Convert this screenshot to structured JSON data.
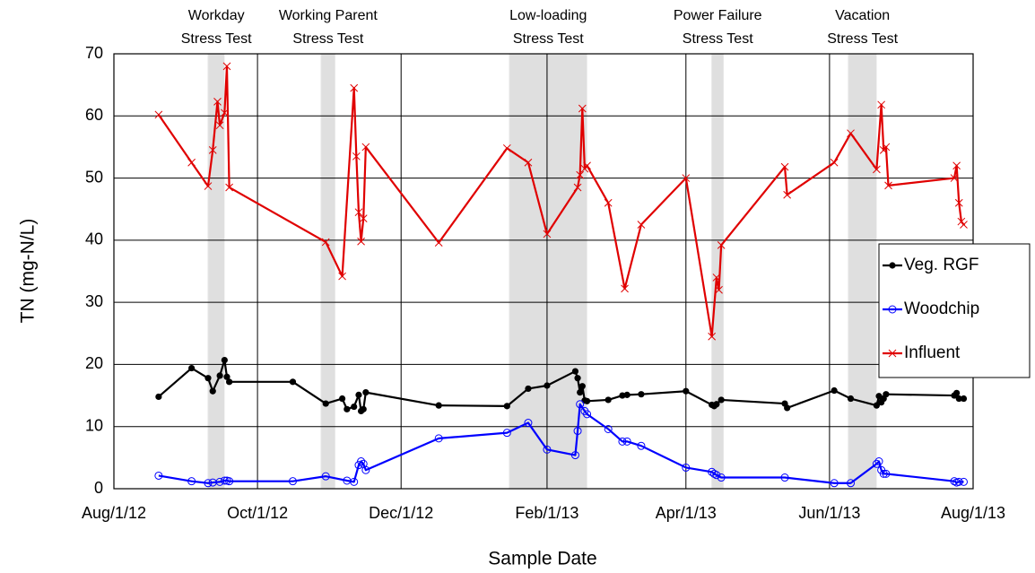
{
  "chart_data": {
    "type": "line",
    "xlabel": "Sample Date",
    "ylabel": "TN (mg-N/L)",
    "xlim": [
      "2012-08-01",
      "2013-08-01"
    ],
    "xticks": [
      {
        "value": "2012-08-01",
        "label": "Aug/1/12"
      },
      {
        "value": "2012-10-01",
        "label": "Oct/1/12"
      },
      {
        "value": "2012-12-01",
        "label": "Dec/1/12"
      },
      {
        "value": "2013-02-01",
        "label": "Feb/1/13"
      },
      {
        "value": "2013-04-01",
        "label": "Apr/1/13"
      },
      {
        "value": "2013-06-01",
        "label": "Jun/1/13"
      },
      {
        "value": "2013-08-01",
        "label": "Aug/1/13"
      }
    ],
    "ylim": [
      0,
      70
    ],
    "yticks": [
      0,
      10,
      20,
      30,
      40,
      50,
      60,
      70
    ],
    "grid": true,
    "legend": "right",
    "annotations": [
      {
        "label": [
          "Workday",
          "Stress Test"
        ],
        "start": "2012-09-10",
        "end": "2012-09-17"
      },
      {
        "label": [
          "Working Parent",
          "Stress Test"
        ],
        "start": "2012-10-28",
        "end": "2012-11-03"
      },
      {
        "label": [
          "Low-loading",
          "Stress Test"
        ],
        "start": "2013-01-16",
        "end": "2013-02-18"
      },
      {
        "label": [
          "Power Failure",
          "Stress Test"
        ],
        "start": "2013-04-12",
        "end": "2013-04-17"
      },
      {
        "label": [
          "Vacation",
          "Stress Test"
        ],
        "start": "2013-06-09",
        "end": "2013-06-21"
      }
    ],
    "series": [
      {
        "name": "Veg. RGF",
        "color": "#000000",
        "marker": "dot",
        "x": [
          "2012-08-20",
          "2012-09-03",
          "2012-09-10",
          "2012-09-12",
          "2012-09-15",
          "2012-09-17",
          "2012-09-18",
          "2012-09-19",
          "2012-10-16",
          "2012-10-30",
          "2012-11-06",
          "2012-11-08",
          "2012-11-11",
          "2012-11-13",
          "2012-11-14",
          "2012-11-15",
          "2012-11-16",
          "2012-12-17",
          "2013-01-15",
          "2013-01-24",
          "2013-02-01",
          "2013-02-13",
          "2013-02-14",
          "2013-02-15",
          "2013-02-16",
          "2013-02-17",
          "2013-02-18",
          "2013-02-27",
          "2013-03-05",
          "2013-03-07",
          "2013-03-13",
          "2013-04-01",
          "2013-04-12",
          "2013-04-13",
          "2013-04-14",
          "2013-04-16",
          "2013-05-13",
          "2013-05-14",
          "2013-06-03",
          "2013-06-10",
          "2013-06-21",
          "2013-06-22",
          "2013-06-23",
          "2013-06-24",
          "2013-06-25",
          "2013-07-24",
          "2013-07-25",
          "2013-07-26",
          "2013-07-28"
        ],
        "values": [
          14.8,
          19.4,
          17.8,
          15.7,
          18.2,
          20.7,
          18,
          17.2,
          17.2,
          13.7,
          14.5,
          12.8,
          13.2,
          15.1,
          12.5,
          12.8,
          15.5,
          13.4,
          13.3,
          16.1,
          16.6,
          18.9,
          17.8,
          15.5,
          16.5,
          14.2,
          14.1,
          14.3,
          15,
          15.1,
          15.2,
          15.7,
          13.5,
          13.3,
          13.6,
          14.3,
          13.7,
          13,
          15.8,
          14.5,
          13.4,
          14.9,
          13.9,
          14.5,
          15.2,
          15,
          15.4,
          14.5,
          14.5
        ]
      },
      {
        "name": "Woodchip",
        "color": "#0000ff",
        "marker": "circle",
        "x": [
          "2012-08-20",
          "2012-09-03",
          "2012-09-10",
          "2012-09-12",
          "2012-09-15",
          "2012-09-17",
          "2012-09-18",
          "2012-09-19",
          "2012-10-16",
          "2012-10-30",
          "2012-11-08",
          "2012-11-11",
          "2012-11-13",
          "2012-11-14",
          "2012-11-15",
          "2012-11-16",
          "2012-12-17",
          "2013-01-15",
          "2013-01-24",
          "2013-02-01",
          "2013-02-13",
          "2013-02-14",
          "2013-02-15",
          "2013-02-17",
          "2013-02-18",
          "2013-02-27",
          "2013-03-05",
          "2013-03-07",
          "2013-03-13",
          "2013-04-01",
          "2013-04-12",
          "2013-04-13",
          "2013-04-14",
          "2013-04-16",
          "2013-05-13",
          "2013-06-03",
          "2013-06-10",
          "2013-06-21",
          "2013-06-22",
          "2013-06-23",
          "2013-06-24",
          "2013-06-25",
          "2013-07-24",
          "2013-07-25",
          "2013-07-26",
          "2013-07-28"
        ],
        "values": [
          2.1,
          1.2,
          0.9,
          1,
          1.1,
          1.3,
          1.3,
          1.2,
          1.2,
          2,
          1.3,
          1.1,
          3.8,
          4.4,
          4,
          3,
          8.1,
          9,
          10.6,
          6.3,
          5.4,
          9.3,
          13.6,
          12.5,
          12,
          9.6,
          7.6,
          7.6,
          6.9,
          3.4,
          2.7,
          2.4,
          2.2,
          1.8,
          1.8,
          0.9,
          0.9,
          4,
          4.4,
          3,
          2.4,
          2.4,
          1.2,
          1,
          1.1,
          1.1
        ]
      },
      {
        "name": "Influent",
        "color": "#e00000",
        "marker": "x",
        "x": [
          "2012-08-20",
          "2012-09-03",
          "2012-09-10",
          "2012-09-12",
          "2012-09-14",
          "2012-09-15",
          "2012-09-17",
          "2012-09-18",
          "2012-09-19",
          "2012-10-30",
          "2012-11-06",
          "2012-11-11",
          "2012-11-12",
          "2012-11-13",
          "2012-11-14",
          "2012-11-15",
          "2012-11-16",
          "2012-12-17",
          "2013-01-15",
          "2013-01-24",
          "2013-02-01",
          "2013-02-14",
          "2013-02-15",
          "2013-02-16",
          "2013-02-17",
          "2013-02-18",
          "2013-02-27",
          "2013-03-06",
          "2013-03-13",
          "2013-04-01",
          "2013-04-12",
          "2013-04-14",
          "2013-04-15",
          "2013-04-16",
          "2013-05-13",
          "2013-05-14",
          "2013-06-03",
          "2013-06-10",
          "2013-06-21",
          "2013-06-23",
          "2013-06-24",
          "2013-06-25",
          "2013-06-26",
          "2013-07-24",
          "2013-07-25",
          "2013-07-26",
          "2013-07-27",
          "2013-07-28"
        ],
        "values": [
          60.2,
          52.5,
          48.7,
          54.5,
          62.3,
          58.5,
          60.5,
          68,
          48.5,
          39.7,
          34.2,
          64.5,
          53.5,
          44.5,
          39.8,
          43.5,
          55,
          39.6,
          54.8,
          52.5,
          41,
          48.5,
          50.5,
          61.2,
          51.5,
          52,
          46,
          32.2,
          42.5,
          50,
          24.5,
          34,
          32,
          39.2,
          51.8,
          47.3,
          52.5,
          57.2,
          51.4,
          61.8,
          54.5,
          55,
          48.8,
          50,
          52,
          46,
          43,
          42.5
        ]
      }
    ]
  }
}
